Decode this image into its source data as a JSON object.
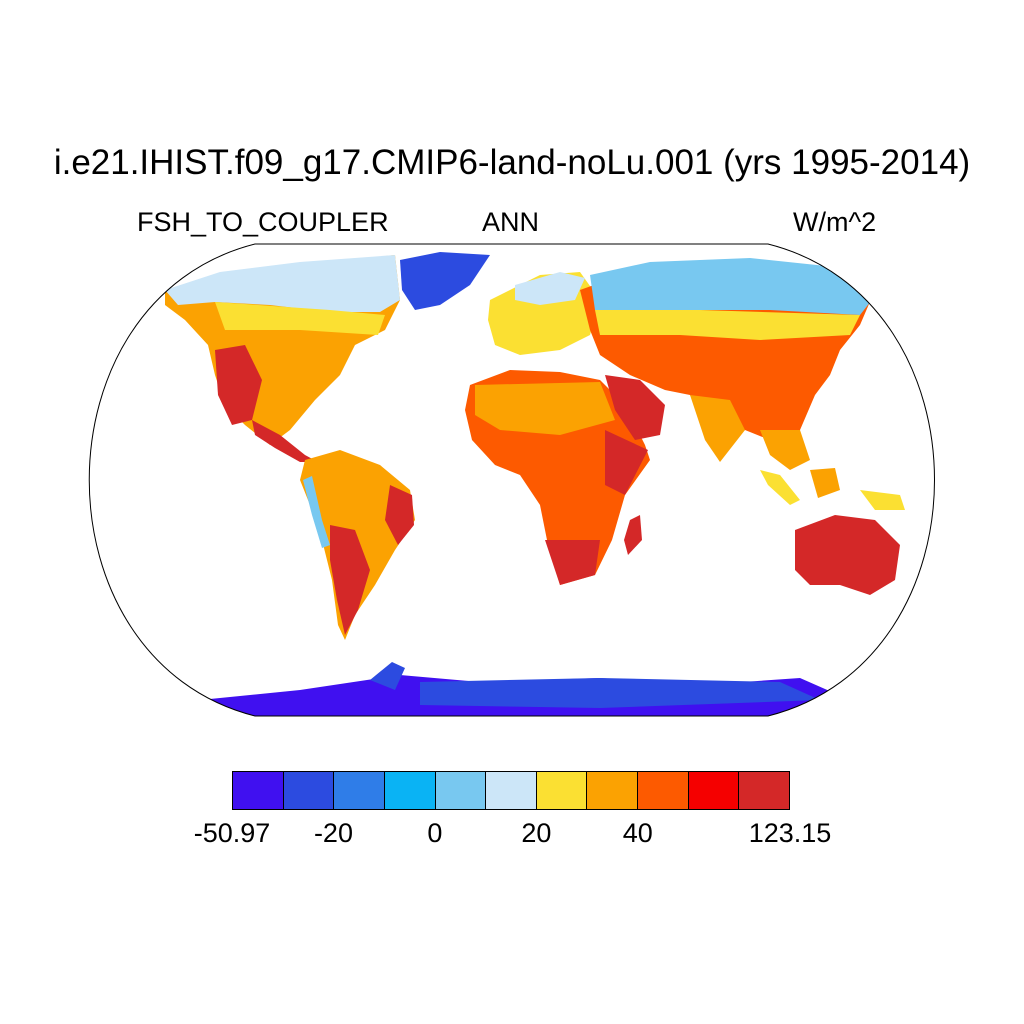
{
  "title": "i.e21.IHIST.f09_g17.CMIP6-land-noLu.001 (yrs 1995-2014)",
  "variable": "FSH_TO_COUPLER",
  "season": "ANN",
  "units": "W/m^2",
  "colorbar": {
    "colors": [
      "#4010f0",
      "#2c4be0",
      "#2f7de8",
      "#0ab3f4",
      "#78c8f0",
      "#cce6f8",
      "#fbe032",
      "#fba202",
      "#fd5a00",
      "#f50000",
      "#d42828"
    ],
    "labels": [
      "-50.97",
      "-20",
      "0",
      "20",
      "40",
      "123.15"
    ]
  },
  "palette": {
    "land_hot": "#d42828",
    "land_warm": "#fd5a00",
    "land_mild": "#fba202",
    "land_cool": "#fbe032",
    "land_cold": "#cce6f8",
    "land_neg": "#78c8f0",
    "antarctica": "#4010f0",
    "greenland": "#2c4be0",
    "ocean": "#ffffff",
    "coast": "#000000"
  }
}
